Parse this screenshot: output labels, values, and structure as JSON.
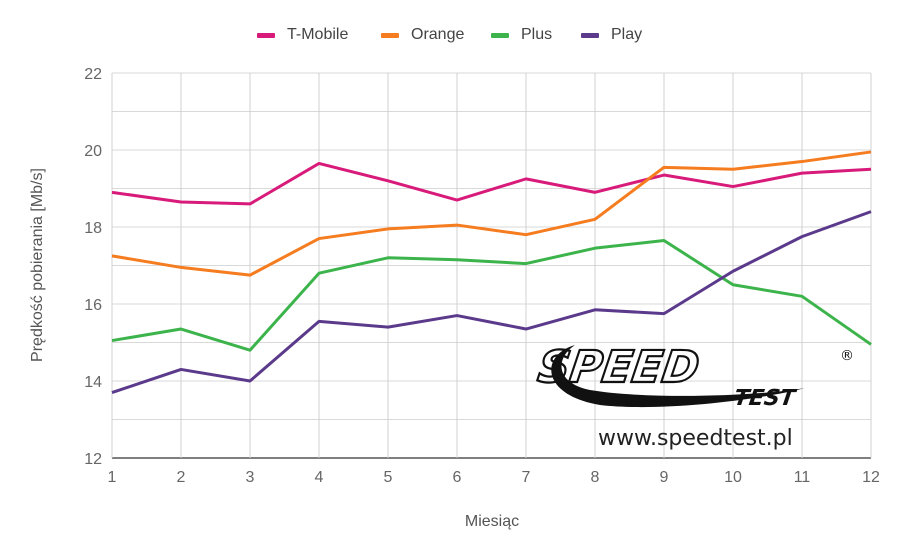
{
  "chart_data": {
    "type": "line",
    "title": "",
    "xlabel": "Miesiąc",
    "ylabel": "Prędkość pobierania [Mb/s]",
    "x": [
      1,
      2,
      3,
      4,
      5,
      6,
      7,
      8,
      9,
      10,
      11,
      12
    ],
    "ylim": [
      12,
      22
    ],
    "yticks": [
      12,
      14,
      16,
      18,
      20,
      22
    ],
    "grid": true,
    "legend_position": "top",
    "series": [
      {
        "name": "T-Mobile",
        "color": "#d81b7a",
        "values": [
          18.9,
          18.65,
          18.6,
          19.65,
          19.2,
          18.7,
          19.25,
          18.9,
          19.35,
          19.05,
          19.4,
          19.5
        ]
      },
      {
        "name": "Orange",
        "color": "#f57c1f",
        "values": [
          17.25,
          16.95,
          16.75,
          17.7,
          17.95,
          18.05,
          17.8,
          18.2,
          19.55,
          19.5,
          19.7,
          19.95
        ]
      },
      {
        "name": "Plus",
        "color": "#3cb44b",
        "values": [
          15.05,
          15.35,
          14.8,
          16.8,
          17.2,
          17.15,
          17.05,
          17.45,
          17.65,
          16.5,
          16.2,
          14.95
        ]
      },
      {
        "name": "Play",
        "color": "#5b3a8c",
        "values": [
          13.7,
          14.3,
          14.0,
          15.55,
          15.4,
          15.7,
          15.35,
          15.85,
          15.75,
          16.85,
          17.75,
          18.4
        ]
      }
    ]
  },
  "logo": {
    "word1": "SPEED",
    "word2": "TEST",
    "registered": "®",
    "url": "www.speedtest.pl"
  }
}
